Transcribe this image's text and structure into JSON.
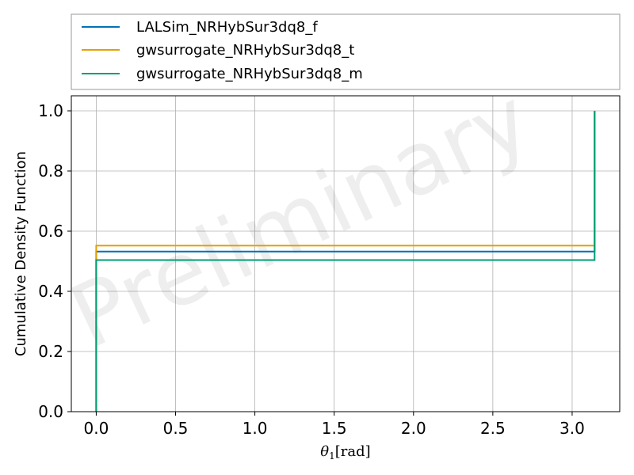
{
  "chart_data": {
    "type": "line",
    "step": true,
    "xlabel_parts": [
      "θ",
      "1",
      "[rad]"
    ],
    "ylabel": "Cumulative Density Function",
    "xlim": [
      -0.157,
      3.3
    ],
    "ylim": [
      0.0,
      1.05
    ],
    "xticks": [
      0.0,
      0.5,
      1.0,
      1.5,
      2.0,
      2.5,
      3.0
    ],
    "xtick_labels": [
      "0.0",
      "0.5",
      "1.0",
      "1.5",
      "2.0",
      "2.5",
      "3.0"
    ],
    "yticks": [
      0.0,
      0.2,
      0.4,
      0.6,
      0.8,
      1.0
    ],
    "ytick_labels": [
      "0.0",
      "0.2",
      "0.4",
      "0.6",
      "0.8",
      "1.0"
    ],
    "grid": true,
    "legend_position": "above-plot",
    "watermark": "Preliminary",
    "series": [
      {
        "name": "LALSim_NRHybSur3dq8_f",
        "color": "#0072b2",
        "x": [
          0.0,
          0.0,
          3.1416,
          3.1416
        ],
        "y": [
          0.0,
          0.532,
          0.532,
          1.0
        ]
      },
      {
        "name": "gwsurrogate_NRHybSur3dq8_t",
        "color": "#e69f00",
        "x": [
          0.0,
          0.0,
          3.1416,
          3.1416
        ],
        "y": [
          0.0,
          0.552,
          0.552,
          1.0
        ]
      },
      {
        "name": "gwsurrogate_NRHybSur3dq8_m",
        "color": "#009e73",
        "x": [
          0.0,
          0.0,
          3.1416,
          3.1416
        ],
        "y": [
          0.0,
          0.504,
          0.504,
          1.0
        ]
      }
    ]
  }
}
